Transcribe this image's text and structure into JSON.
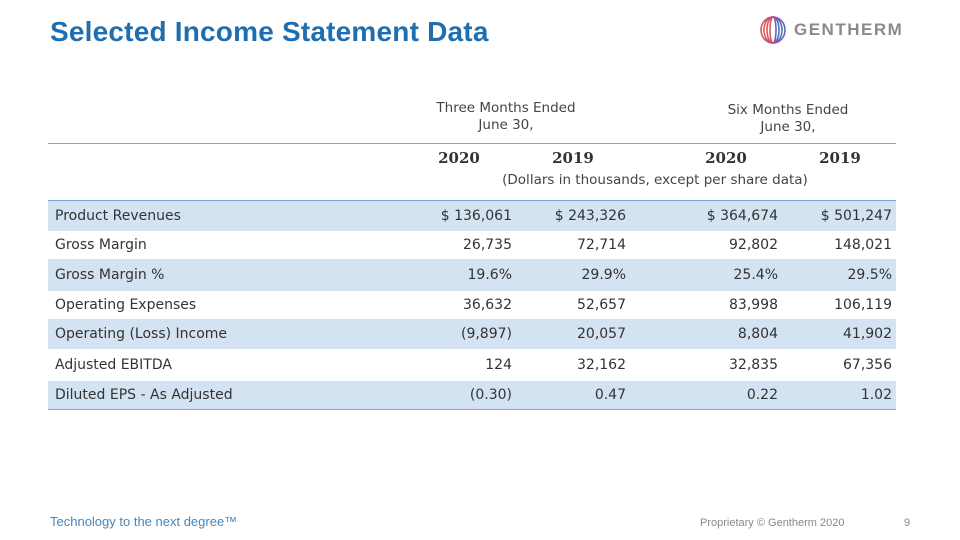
{
  "slide": {
    "title": "Selected Income Statement Data",
    "logo_text": "GENTHERM",
    "tagline": "Technology to the next degree™",
    "footer": "Proprietary © Gentherm 2020",
    "page_number": "9"
  },
  "colors": {
    "title": "#1f6eaf",
    "band": "#d4e3f1",
    "rule": "#7ca6cf"
  },
  "table": {
    "group_headers": [
      {
        "line1": "Three Months Ended",
        "line2": "June 30,"
      },
      {
        "line1": "Six Months Ended",
        "line2": "June 30,"
      }
    ],
    "years": [
      "2020",
      "2019",
      "2020",
      "2019"
    ],
    "units_note": "(Dollars in thousands, except per share data)",
    "rows": [
      {
        "label": "Product Revenues",
        "values": [
          "$ 136,061",
          "$ 243,326",
          "$ 364,674",
          "$ 501,247"
        ],
        "shaded": true
      },
      {
        "label": "Gross Margin",
        "values": [
          "26,735",
          "72,714",
          "92,802",
          "148,021"
        ],
        "shaded": false
      },
      {
        "label": "Gross Margin %",
        "values": [
          "19.6%",
          "29.9%",
          "25.4%",
          "29.5%"
        ],
        "shaded": true
      },
      {
        "label": "Operating Expenses",
        "values": [
          "36,632",
          "52,657",
          "83,998",
          "106,119"
        ],
        "shaded": false
      },
      {
        "label": "Operating (Loss) Income",
        "values": [
          "(9,897)",
          "20,057",
          "8,804",
          "41,902"
        ],
        "shaded": true
      },
      {
        "label": "Adjusted EBITDA",
        "values": [
          "124",
          "32,162",
          "32,835",
          "67,356"
        ],
        "shaded": false
      },
      {
        "label": "Diluted EPS - As Adjusted",
        "values": [
          "(0.30)",
          "0.47",
          "0.22",
          "1.02"
        ],
        "shaded": true
      }
    ]
  }
}
